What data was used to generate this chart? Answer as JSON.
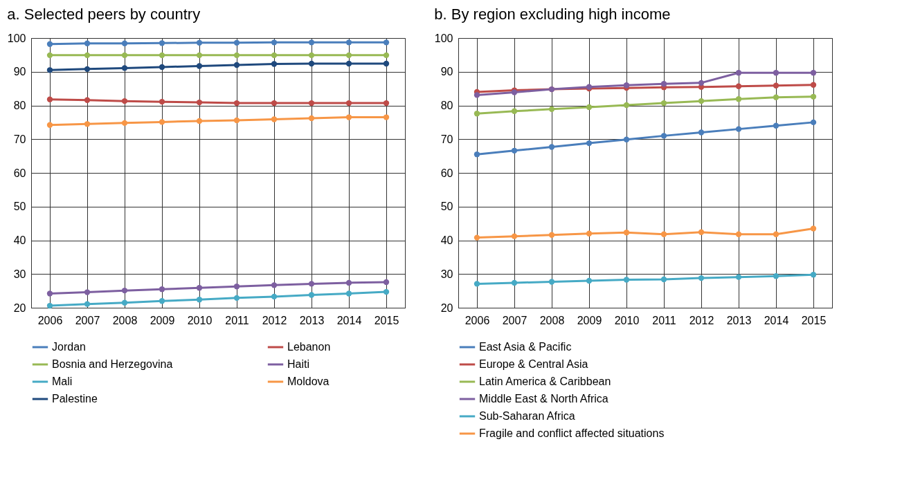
{
  "chart_data": [
    {
      "type": "line",
      "title": "a.  Selected peers by country",
      "categories": [
        "2006",
        "2007",
        "2008",
        "2009",
        "2010",
        "2011",
        "2012",
        "2013",
        "2014",
        "2015"
      ],
      "ylim": [
        20,
        100
      ],
      "yticks": [
        20,
        30,
        40,
        50,
        60,
        70,
        80,
        90,
        100
      ],
      "grid": true,
      "marker": "circle",
      "legend": "bottom",
      "series": [
        {
          "name": "Jordan",
          "color": "#4a7ebb",
          "values": [
            98.2,
            98.4,
            98.4,
            98.5,
            98.6,
            98.6,
            98.7,
            98.7,
            98.7,
            98.7
          ]
        },
        {
          "name": "Lebanon",
          "color": "#be4b48",
          "values": [
            81.8,
            81.6,
            81.3,
            81.1,
            80.9,
            80.7,
            80.7,
            80.7,
            80.7,
            80.7
          ]
        },
        {
          "name": "Bosnia and Herzegovina",
          "color": "#98b954",
          "values": [
            94.9,
            94.9,
            94.9,
            94.9,
            94.9,
            94.9,
            94.9,
            94.9,
            94.9,
            94.9
          ]
        },
        {
          "name": "Haiti",
          "color": "#7d5fa0",
          "values": [
            24.2,
            24.6,
            25.1,
            25.5,
            25.9,
            26.3,
            26.7,
            27.1,
            27.4,
            27.6
          ]
        },
        {
          "name": "Mali",
          "color": "#46aac5",
          "values": [
            20.6,
            21.1,
            21.5,
            22.0,
            22.4,
            22.9,
            23.3,
            23.8,
            24.2,
            24.7
          ]
        },
        {
          "name": "Moldova",
          "color": "#f79646",
          "values": [
            74.2,
            74.5,
            74.8,
            75.1,
            75.4,
            75.6,
            75.9,
            76.2,
            76.5,
            76.5
          ]
        },
        {
          "name": "Palestine",
          "color": "#1f497d",
          "values": [
            90.5,
            90.8,
            91.1,
            91.4,
            91.7,
            92.0,
            92.3,
            92.4,
            92.4,
            92.4
          ]
        }
      ]
    },
    {
      "type": "line",
      "title": "b.  By region excluding high income",
      "categories": [
        "2006",
        "2007",
        "2008",
        "2009",
        "2010",
        "2011",
        "2012",
        "2013",
        "2014",
        "2015"
      ],
      "ylim": [
        20,
        100
      ],
      "yticks": [
        20,
        30,
        40,
        50,
        60,
        70,
        80,
        90,
        100
      ],
      "grid": true,
      "marker": "circle",
      "legend": "bottom",
      "series": [
        {
          "name": "East Asia & Pacific",
          "color": "#4a7ebb",
          "values": [
            65.5,
            66.6,
            67.7,
            68.8,
            69.9,
            71.0,
            72.0,
            73.0,
            74.0,
            75.0
          ]
        },
        {
          "name": "Europe & Central Asia",
          "color": "#be4b48",
          "values": [
            84.0,
            84.5,
            84.8,
            85.0,
            85.2,
            85.4,
            85.5,
            85.7,
            85.9,
            86.1
          ]
        },
        {
          "name": "Latin America & Caribbean",
          "color": "#98b954",
          "values": [
            77.6,
            78.3,
            78.9,
            79.5,
            80.1,
            80.7,
            81.3,
            81.9,
            82.4,
            82.6
          ]
        },
        {
          "name": "Middle East & North Africa",
          "color": "#7d5fa0",
          "values": [
            83.1,
            83.9,
            84.8,
            85.5,
            86.0,
            86.4,
            86.7,
            89.7,
            89.7,
            89.7
          ]
        },
        {
          "name": "Sub-Saharan Africa",
          "color": "#46aac5",
          "values": [
            27.1,
            27.4,
            27.7,
            28.0,
            28.3,
            28.4,
            28.8,
            29.1,
            29.4,
            29.8
          ]
        },
        {
          "name": "Fragile and conflict affected situations",
          "color": "#f79646",
          "values": [
            40.8,
            41.2,
            41.6,
            42.0,
            42.3,
            41.8,
            42.4,
            41.8,
            41.8,
            43.5
          ]
        }
      ]
    }
  ]
}
